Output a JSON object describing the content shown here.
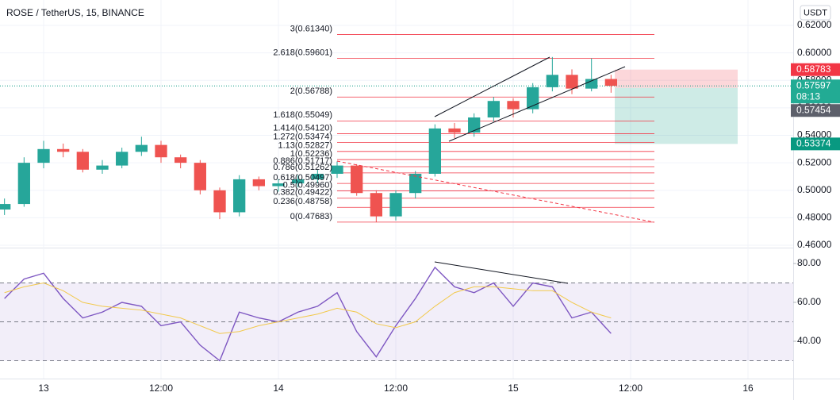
{
  "chart_data": [
    {
      "type": "candlestick",
      "title": "ROSE / TetherUS, 15, BINANCE",
      "unit_label": "USDT",
      "x": [
        -4,
        -2,
        0,
        2,
        4,
        6,
        8,
        10,
        12,
        14,
        16,
        18,
        20,
        22,
        24,
        26,
        28,
        30,
        32,
        34,
        36,
        38,
        40,
        42,
        44,
        46,
        48,
        50,
        52,
        54,
        56,
        58
      ],
      "open": [
        0.486,
        0.49,
        0.52,
        0.53,
        0.528,
        0.515,
        0.518,
        0.528,
        0.533,
        0.524,
        0.52,
        0.5,
        0.484,
        0.508,
        0.503,
        0.505,
        0.508,
        0.512,
        0.518,
        0.498,
        0.481,
        0.498,
        0.512,
        0.545,
        0.542,
        0.553,
        0.565,
        0.559,
        0.575,
        0.584,
        0.574,
        0.581
      ],
      "high": [
        0.494,
        0.524,
        0.536,
        0.534,
        0.53,
        0.522,
        0.531,
        0.539,
        0.536,
        0.526,
        0.522,
        0.502,
        0.511,
        0.51,
        0.508,
        0.511,
        0.515,
        0.521,
        0.519,
        0.5,
        0.5,
        0.514,
        0.548,
        0.549,
        0.556,
        0.568,
        0.567,
        0.578,
        0.597,
        0.588,
        0.596,
        0.584
      ],
      "low": [
        0.482,
        0.488,
        0.516,
        0.524,
        0.513,
        0.512,
        0.516,
        0.525,
        0.52,
        0.516,
        0.497,
        0.479,
        0.481,
        0.5,
        0.499,
        0.502,
        0.505,
        0.509,
        0.496,
        0.477,
        0.478,
        0.494,
        0.51,
        0.538,
        0.539,
        0.55,
        0.553,
        0.556,
        0.572,
        0.57,
        0.572,
        0.571
      ],
      "close": [
        0.49,
        0.52,
        0.53,
        0.528,
        0.515,
        0.518,
        0.528,
        0.533,
        0.524,
        0.52,
        0.5,
        0.484,
        0.508,
        0.503,
        0.505,
        0.508,
        0.512,
        0.518,
        0.498,
        0.481,
        0.498,
        0.512,
        0.545,
        0.542,
        0.553,
        0.565,
        0.559,
        0.575,
        0.584,
        0.574,
        0.581,
        0.576
      ],
      "up_color": "#26a69a",
      "down_color": "#ef5350",
      "xlim": [
        -4.46,
        76.62
      ],
      "xticks": [
        {
          "value": 0,
          "label": "13"
        },
        {
          "value": 12,
          "label": "12:00"
        },
        {
          "value": 24,
          "label": "14"
        },
        {
          "value": 36,
          "label": "12:00"
        },
        {
          "value": 48,
          "label": "15"
        },
        {
          "value": 60,
          "label": "12:00"
        },
        {
          "value": 72,
          "label": "16"
        }
      ],
      "ylim": [
        0.45827,
        0.63848
      ],
      "yticks": [
        {
          "value": 0.46,
          "label": "0.46000"
        },
        {
          "value": 0.48,
          "label": "0.48000"
        },
        {
          "value": 0.5,
          "label": "0.50000"
        },
        {
          "value": 0.52,
          "label": "0.52000"
        },
        {
          "value": 0.54,
          "label": "0.54000"
        },
        {
          "value": 0.56,
          "label": "0.56000"
        },
        {
          "value": 0.58,
          "label": "0.58000"
        },
        {
          "value": 0.6,
          "label": "0.60000"
        },
        {
          "value": 0.62,
          "label": "0.62000"
        }
      ],
      "fib_color": "#f23645",
      "fib_levels": [
        {
          "value": 0.6134,
          "label": "3(0.61340)"
        },
        {
          "value": 0.59601,
          "label": "2.618(0.59601)"
        },
        {
          "value": 0.56788,
          "label": "2(0.56788)"
        },
        {
          "value": 0.55049,
          "label": "1.618(0.55049)"
        },
        {
          "value": 0.5412,
          "label": "1.414(0.54120)"
        },
        {
          "value": 0.53474,
          "label": "1.272(0.53474)"
        },
        {
          "value": 0.52827,
          "label": "1.13(0.52827)"
        },
        {
          "value": 0.52236,
          "label": "1(0.52236)"
        },
        {
          "value": 0.51717,
          "label": "0.886(0.51717)"
        },
        {
          "value": 0.51262,
          "label": "0.786(0.51262)"
        },
        {
          "value": 0.50497,
          "label": "0.618(0.50497)"
        },
        {
          "value": 0.4996,
          "label": "0.5(0.49960)"
        },
        {
          "value": 0.49422,
          "label": "0.382(0.49422)"
        },
        {
          "value": 0.48758,
          "label": "0.236(0.48758)"
        },
        {
          "value": 0.47683,
          "label": "0(0.47683)"
        }
      ],
      "position": {
        "stop": 0.58783,
        "entry": 0.57454,
        "target": 0.53374
      },
      "last_price": 0.57597,
      "countdown": "08:13"
    },
    {
      "type": "line",
      "x": [
        -4,
        -2,
        0,
        2,
        4,
        6,
        8,
        10,
        12,
        14,
        16,
        18,
        20,
        22,
        24,
        26,
        28,
        30,
        32,
        34,
        36,
        38,
        40,
        42,
        44,
        46,
        48,
        50,
        52,
        54,
        56,
        58
      ],
      "series": [
        {
          "color": "#7e57c2",
          "values": [
            62,
            72,
            75,
            62,
            52,
            55,
            60,
            58,
            48,
            50,
            38,
            30,
            55,
            52,
            50,
            55,
            58,
            65,
            45,
            32,
            48,
            62,
            78,
            68,
            65,
            70,
            58,
            70,
            68,
            52,
            55,
            44
          ]
        },
        {
          "color": "#f2c94c",
          "values": [
            65,
            68,
            70,
            66,
            60,
            58,
            57,
            56,
            54,
            52,
            48,
            44,
            45,
            48,
            50,
            52,
            54,
            57,
            55,
            49,
            47,
            50,
            58,
            65,
            68,
            68,
            67,
            66,
            66,
            60,
            55,
            52
          ]
        }
      ],
      "ylim": [
        20.82,
        87.76
      ],
      "yticks": [
        {
          "value": 40,
          "label": "40.00"
        },
        {
          "value": 60,
          "label": "60.00"
        },
        {
          "value": 80,
          "label": "80.00"
        }
      ],
      "bands": [
        70,
        50,
        30
      ]
    }
  ]
}
